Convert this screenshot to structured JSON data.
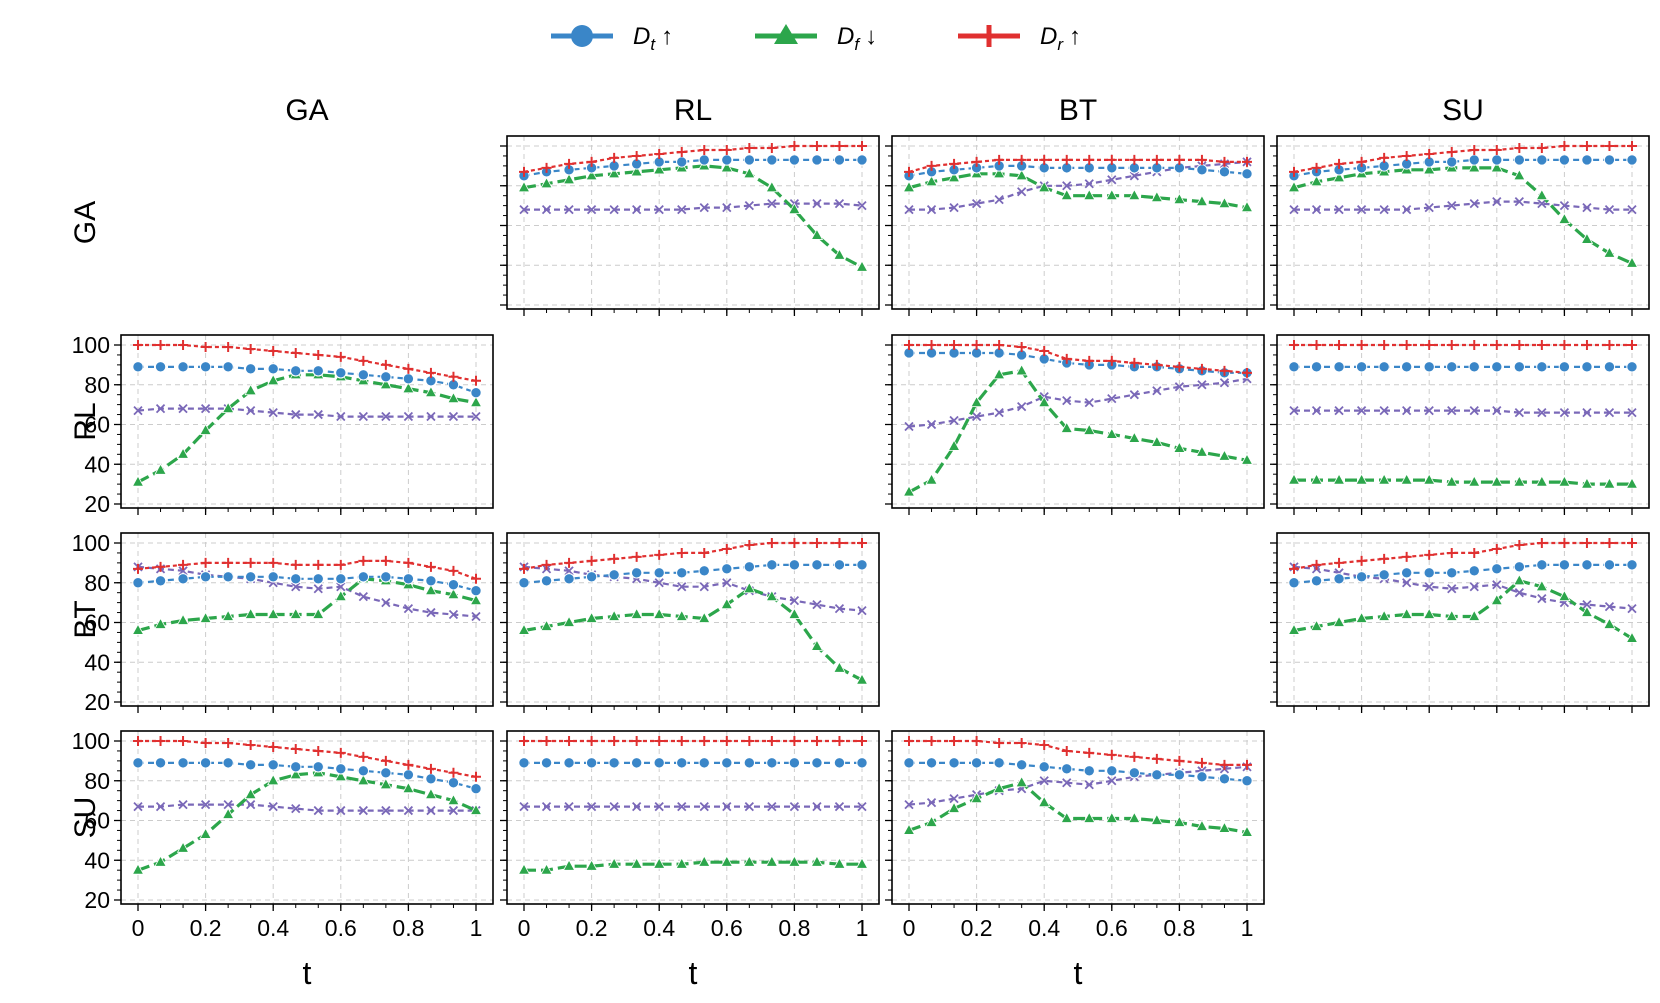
{
  "legend": [
    {
      "base": "D",
      "sub": "t",
      "arrow": "↑",
      "color": "#3a86c8",
      "marker": "circle"
    },
    {
      "base": "D",
      "sub": "f",
      "arrow": "↓",
      "color": "#2ca64b",
      "marker": "triangle"
    },
    {
      "base": "D",
      "sub": "r",
      "arrow": "↑",
      "color": "#e03030",
      "marker": "plus"
    }
  ],
  "colors": {
    "Dt": "#3a86c8",
    "Df": "#2ca64b",
    "Dr": "#e03030",
    "X": "#7a68b8"
  },
  "col_labels": [
    "GA",
    "RL",
    "BT",
    "SU"
  ],
  "row_labels": [
    "GA",
    "RL",
    "BT",
    "SU"
  ],
  "xlabel": "t",
  "x_tick_labels": [
    "0",
    "0.2",
    "0.4",
    "0.6",
    "0.8",
    "1"
  ],
  "y_tick_labels": [
    "20",
    "40",
    "60",
    "80",
    "100"
  ],
  "chart_data": {
    "type": "line",
    "xlim": [
      0,
      1
    ],
    "ylim": [
      20,
      100
    ],
    "grid": true,
    "legend_position": "top-center",
    "x": [
      0,
      0.0667,
      0.1333,
      0.2,
      0.2667,
      0.3333,
      0.4,
      0.4667,
      0.5333,
      0.6,
      0.6667,
      0.7333,
      0.8,
      0.8667,
      0.9333,
      1
    ],
    "series_keys": [
      "Dt",
      "Df",
      "Dr",
      "X"
    ],
    "panels": [
      {
        "row": "GA",
        "col": "RL",
        "Dt": [
          85,
          87,
          88,
          89,
          90,
          91,
          92,
          92,
          93,
          93,
          93,
          93,
          93,
          93,
          93,
          93
        ],
        "Df": [
          79,
          81,
          83,
          85,
          86,
          87,
          88,
          89,
          90,
          89,
          86,
          79,
          68,
          55,
          45,
          39
        ],
        "Dr": [
          87,
          89,
          91,
          92,
          94,
          95,
          96,
          97,
          98,
          98,
          99,
          99,
          100,
          100,
          100,
          100
        ],
        "X": [
          68,
          68,
          68,
          68,
          68,
          68,
          68,
          68,
          69,
          69,
          70,
          71,
          71,
          71,
          71,
          70
        ]
      },
      {
        "row": "GA",
        "col": "BT",
        "Dt": [
          85,
          87,
          88,
          89,
          90,
          90,
          89,
          89,
          89,
          89,
          89,
          89,
          89,
          88,
          87,
          86
        ],
        "Df": [
          79,
          82,
          84,
          86,
          86,
          85,
          79,
          75,
          75,
          75,
          75,
          74,
          73,
          72,
          71,
          69
        ],
        "Dr": [
          87,
          90,
          91,
          92,
          93,
          93,
          93,
          93,
          93,
          93,
          93,
          93,
          93,
          93,
          92,
          92
        ],
        "X": [
          68,
          68,
          69,
          71,
          73,
          77,
          80,
          80,
          81,
          83,
          85,
          87,
          89,
          90,
          91,
          92
        ]
      },
      {
        "row": "GA",
        "col": "SU",
        "Dt": [
          85,
          87,
          88,
          89,
          90,
          91,
          92,
          92,
          93,
          93,
          93,
          93,
          93,
          93,
          93,
          93
        ],
        "Df": [
          79,
          82,
          84,
          86,
          87,
          88,
          88,
          89,
          89,
          89,
          85,
          75,
          63,
          53,
          46,
          41
        ],
        "Dr": [
          87,
          89,
          91,
          92,
          94,
          95,
          96,
          97,
          98,
          98,
          99,
          99,
          100,
          100,
          100,
          100
        ],
        "X": [
          68,
          68,
          68,
          68,
          68,
          68,
          69,
          70,
          71,
          72,
          72,
          71,
          70,
          69,
          68,
          68
        ]
      },
      {
        "row": "RL",
        "col": "GA",
        "Dt": [
          89,
          89,
          89,
          89,
          89,
          88,
          88,
          87,
          87,
          86,
          85,
          84,
          83,
          82,
          80,
          76
        ],
        "Df": [
          31,
          37,
          45,
          57,
          68,
          77,
          82,
          85,
          85,
          84,
          82,
          80,
          78,
          76,
          73,
          71
        ],
        "Dr": [
          100,
          100,
          100,
          99,
          99,
          98,
          97,
          96,
          95,
          94,
          92,
          90,
          88,
          86,
          84,
          82
        ],
        "X": [
          67,
          68,
          68,
          68,
          68,
          67,
          66,
          65,
          65,
          64,
          64,
          64,
          64,
          64,
          64,
          64
        ]
      },
      {
        "row": "RL",
        "col": "BT",
        "Dt": [
          96,
          96,
          96,
          96,
          96,
          95,
          93,
          91,
          90,
          90,
          89,
          89,
          88,
          87,
          86,
          86
        ],
        "Df": [
          26,
          32,
          49,
          71,
          85,
          87,
          71,
          58,
          57,
          55,
          53,
          51,
          48,
          46,
          44,
          42
        ],
        "Dr": [
          100,
          100,
          100,
          100,
          100,
          99,
          97,
          93,
          92,
          92,
          91,
          90,
          89,
          88,
          87,
          86
        ],
        "X": [
          59,
          60,
          62,
          64,
          66,
          69,
          74,
          72,
          71,
          73,
          75,
          77,
          79,
          80,
          81,
          83
        ]
      },
      {
        "row": "RL",
        "col": "SU",
        "Dt": [
          89,
          89,
          89,
          89,
          89,
          89,
          89,
          89,
          89,
          89,
          89,
          89,
          89,
          89,
          89,
          89
        ],
        "Df": [
          32,
          32,
          32,
          32,
          32,
          32,
          32,
          31,
          31,
          31,
          31,
          31,
          31,
          30,
          30,
          30
        ],
        "Dr": [
          100,
          100,
          100,
          100,
          100,
          100,
          100,
          100,
          100,
          100,
          100,
          100,
          100,
          100,
          100,
          100
        ],
        "X": [
          67,
          67,
          67,
          67,
          67,
          67,
          67,
          67,
          67,
          67,
          66,
          66,
          66,
          66,
          66,
          66
        ]
      },
      {
        "row": "BT",
        "col": "GA",
        "Dt": [
          80,
          81,
          82,
          83,
          83,
          83,
          83,
          82,
          82,
          82,
          83,
          83,
          82,
          81,
          79,
          76
        ],
        "Df": [
          56,
          59,
          61,
          62,
          63,
          64,
          64,
          64,
          64,
          73,
          82,
          81,
          79,
          76,
          74,
          71
        ],
        "Dr": [
          87,
          88,
          89,
          90,
          90,
          90,
          90,
          89,
          89,
          89,
          91,
          91,
          90,
          88,
          86,
          82
        ],
        "X": [
          88,
          87,
          86,
          84,
          83,
          82,
          80,
          78,
          77,
          78,
          73,
          70,
          67,
          65,
          64,
          63
        ]
      },
      {
        "row": "BT",
        "col": "RL",
        "Dt": [
          80,
          81,
          82,
          83,
          84,
          85,
          85,
          85,
          86,
          87,
          88,
          89,
          89,
          89,
          89,
          89
        ],
        "Df": [
          56,
          58,
          60,
          62,
          63,
          64,
          64,
          63,
          62,
          69,
          77,
          73,
          64,
          48,
          37,
          31
        ],
        "Dr": [
          87,
          89,
          90,
          91,
          92,
          93,
          94,
          95,
          95,
          97,
          99,
          100,
          100,
          100,
          100,
          100
        ],
        "X": [
          88,
          87,
          86,
          84,
          83,
          82,
          80,
          78,
          78,
          80,
          76,
          73,
          71,
          69,
          67,
          66
        ]
      },
      {
        "row": "BT",
        "col": "SU",
        "Dt": [
          80,
          81,
          82,
          83,
          84,
          85,
          85,
          85,
          86,
          87,
          88,
          89,
          89,
          89,
          89,
          89
        ],
        "Df": [
          56,
          58,
          60,
          62,
          63,
          64,
          64,
          63,
          63,
          71,
          81,
          78,
          73,
          65,
          59,
          52
        ],
        "Dr": [
          87,
          89,
          90,
          91,
          92,
          93,
          94,
          95,
          95,
          97,
          99,
          100,
          100,
          100,
          100,
          100
        ],
        "X": [
          88,
          87,
          85,
          83,
          82,
          80,
          78,
          77,
          78,
          79,
          75,
          72,
          70,
          69,
          68,
          67
        ]
      },
      {
        "row": "SU",
        "col": "GA",
        "Dt": [
          89,
          89,
          89,
          89,
          89,
          88,
          88,
          87,
          87,
          86,
          85,
          84,
          83,
          81,
          79,
          76
        ],
        "Df": [
          35,
          39,
          46,
          53,
          63,
          73,
          80,
          83,
          84,
          82,
          80,
          78,
          76,
          73,
          70,
          65
        ],
        "Dr": [
          100,
          100,
          100,
          99,
          99,
          98,
          97,
          96,
          95,
          94,
          92,
          90,
          88,
          86,
          84,
          82
        ],
        "X": [
          67,
          67,
          68,
          68,
          68,
          68,
          67,
          66,
          65,
          65,
          65,
          65,
          65,
          65,
          65,
          65
        ]
      },
      {
        "row": "SU",
        "col": "RL",
        "Dt": [
          89,
          89,
          89,
          89,
          89,
          89,
          89,
          89,
          89,
          89,
          89,
          89,
          89,
          89,
          89,
          89
        ],
        "Df": [
          35,
          35,
          37,
          37,
          38,
          38,
          38,
          38,
          39,
          39,
          39,
          39,
          39,
          39,
          38,
          38
        ],
        "Dr": [
          100,
          100,
          100,
          100,
          100,
          100,
          100,
          100,
          100,
          100,
          100,
          100,
          100,
          100,
          100,
          100
        ],
        "X": [
          67,
          67,
          67,
          67,
          67,
          67,
          67,
          67,
          67,
          67,
          67,
          67,
          67,
          67,
          67,
          67
        ]
      },
      {
        "row": "SU",
        "col": "BT",
        "Dt": [
          89,
          89,
          89,
          89,
          89,
          88,
          87,
          86,
          85,
          85,
          84,
          83,
          83,
          82,
          81,
          80
        ],
        "Df": [
          55,
          59,
          66,
          71,
          76,
          79,
          69,
          61,
          61,
          61,
          61,
          60,
          59,
          57,
          56,
          54
        ],
        "Dr": [
          100,
          100,
          100,
          100,
          99,
          99,
          98,
          95,
          94,
          93,
          92,
          91,
          90,
          89,
          88,
          88
        ],
        "X": [
          68,
          69,
          71,
          73,
          75,
          76,
          80,
          79,
          78,
          80,
          82,
          83,
          84,
          85,
          86,
          87
        ]
      }
    ]
  }
}
